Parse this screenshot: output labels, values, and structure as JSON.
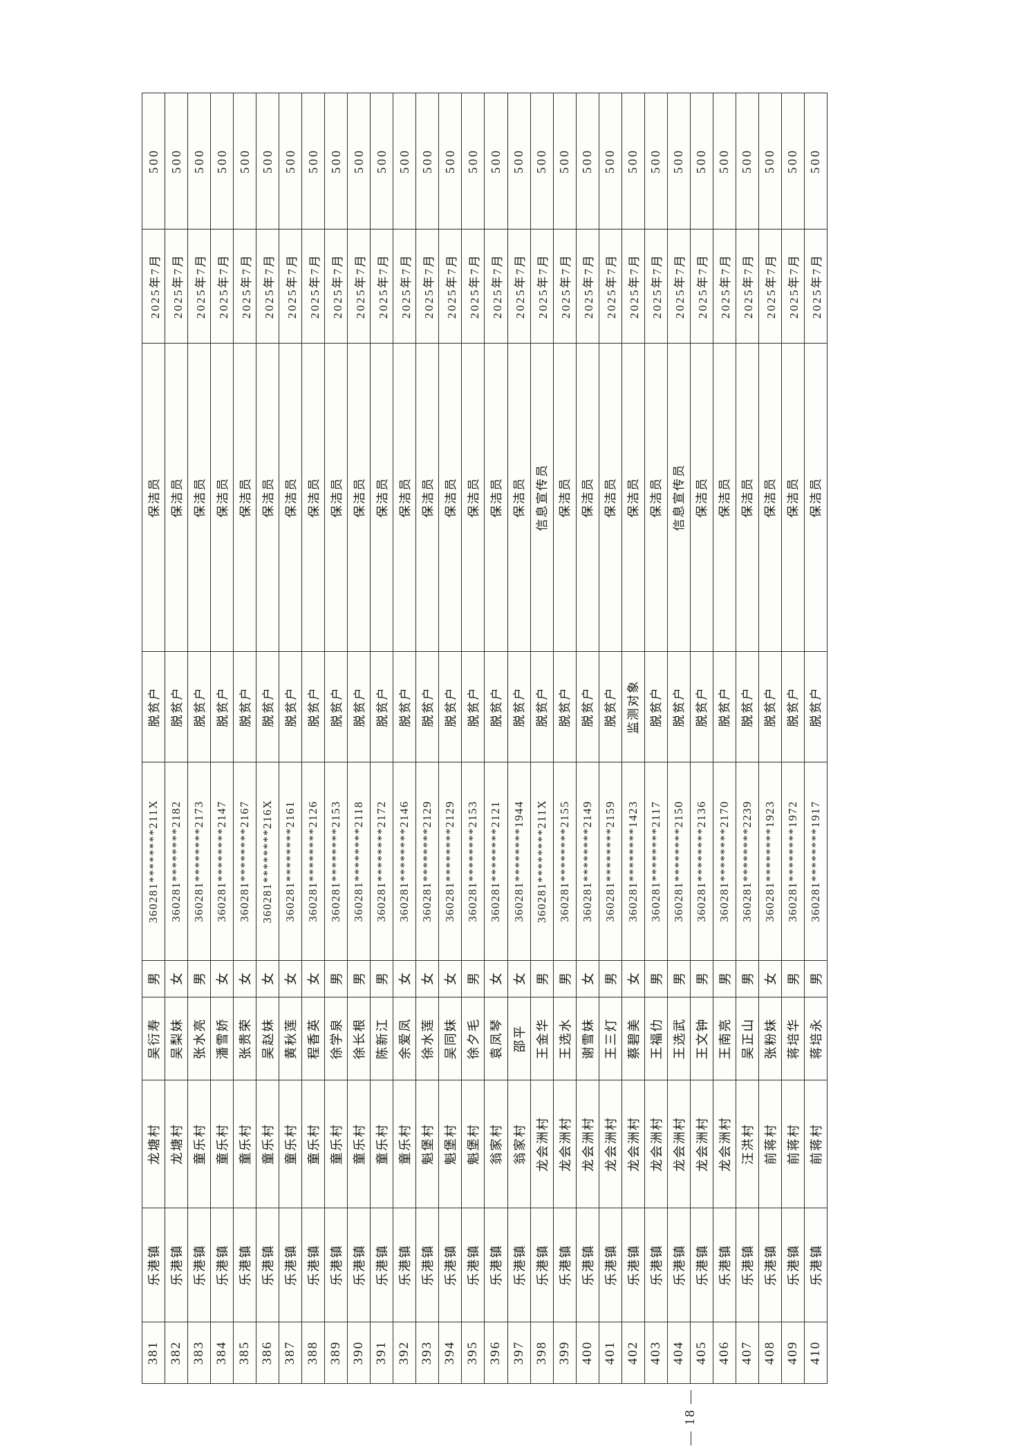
{
  "page": {
    "page_number": "— 18 —"
  },
  "table": {
    "column_order": [
      "seq",
      "town",
      "village",
      "name",
      "gender",
      "id_number",
      "category",
      "post",
      "month",
      "amount"
    ],
    "column_widths": {
      "seq": 89,
      "town": 165,
      "village": 185,
      "name": 120,
      "gender": 53,
      "id_number": 287,
      "category": 160,
      "post": 446,
      "month": 165,
      "amount": 197
    },
    "rows": [
      {
        "seq": "381",
        "town": "乐港镇",
        "village": "龙塘村",
        "name": "吴衍寿",
        "gender": "男",
        "id_number": "360281********211X",
        "category": "脱贫户",
        "post": "保洁员",
        "month": "2025年7月",
        "amount": "500"
      },
      {
        "seq": "382",
        "town": "乐港镇",
        "village": "龙塘村",
        "name": "吴梨妹",
        "gender": "女",
        "id_number": "360281********2182",
        "category": "脱贫户",
        "post": "保洁员",
        "month": "2025年7月",
        "amount": "500"
      },
      {
        "seq": "383",
        "town": "乐港镇",
        "village": "童乐村",
        "name": "张水亮",
        "gender": "男",
        "id_number": "360281********2173",
        "category": "脱贫户",
        "post": "保洁员",
        "month": "2025年7月",
        "amount": "500"
      },
      {
        "seq": "384",
        "town": "乐港镇",
        "village": "童乐村",
        "name": "潘雪娇",
        "gender": "女",
        "id_number": "360281********2147",
        "category": "脱贫户",
        "post": "保洁员",
        "month": "2025年7月",
        "amount": "500"
      },
      {
        "seq": "385",
        "town": "乐港镇",
        "village": "童乐村",
        "name": "张贵荣",
        "gender": "女",
        "id_number": "360281********2167",
        "category": "脱贫户",
        "post": "保洁员",
        "month": "2025年7月",
        "amount": "500"
      },
      {
        "seq": "386",
        "town": "乐港镇",
        "village": "童乐村",
        "name": "吴赵妹",
        "gender": "女",
        "id_number": "360281********216X",
        "category": "脱贫户",
        "post": "保洁员",
        "month": "2025年7月",
        "amount": "500"
      },
      {
        "seq": "387",
        "town": "乐港镇",
        "village": "童乐村",
        "name": "黄秋莲",
        "gender": "女",
        "id_number": "360281********2161",
        "category": "脱贫户",
        "post": "保洁员",
        "month": "2025年7月",
        "amount": "500"
      },
      {
        "seq": "388",
        "town": "乐港镇",
        "village": "童乐村",
        "name": "程香英",
        "gender": "女",
        "id_number": "360281********2126",
        "category": "脱贫户",
        "post": "保洁员",
        "month": "2025年7月",
        "amount": "500"
      },
      {
        "seq": "389",
        "town": "乐港镇",
        "village": "童乐村",
        "name": "徐学泉",
        "gender": "男",
        "id_number": "360281********2153",
        "category": "脱贫户",
        "post": "保洁员",
        "month": "2025年7月",
        "amount": "500"
      },
      {
        "seq": "390",
        "town": "乐港镇",
        "village": "童乐村",
        "name": "徐长根",
        "gender": "男",
        "id_number": "360281********2118",
        "category": "脱贫户",
        "post": "保洁员",
        "month": "2025年7月",
        "amount": "500"
      },
      {
        "seq": "391",
        "town": "乐港镇",
        "village": "童乐村",
        "name": "陈新江",
        "gender": "男",
        "id_number": "360281********2172",
        "category": "脱贫户",
        "post": "保洁员",
        "month": "2025年7月",
        "amount": "500"
      },
      {
        "seq": "392",
        "town": "乐港镇",
        "village": "童乐村",
        "name": "余爱凤",
        "gender": "女",
        "id_number": "360281********2146",
        "category": "脱贫户",
        "post": "保洁员",
        "month": "2025年7月",
        "amount": "500"
      },
      {
        "seq": "393",
        "town": "乐港镇",
        "village": "魁堡村",
        "name": "徐水莲",
        "gender": "女",
        "id_number": "360281********2129",
        "category": "脱贫户",
        "post": "保洁员",
        "month": "2025年7月",
        "amount": "500"
      },
      {
        "seq": "394",
        "town": "乐港镇",
        "village": "魁堡村",
        "name": "吴同妹",
        "gender": "女",
        "id_number": "360281********2129",
        "category": "脱贫户",
        "post": "保洁员",
        "month": "2025年7月",
        "amount": "500"
      },
      {
        "seq": "395",
        "town": "乐港镇",
        "village": "魁堡村",
        "name": "徐夕毛",
        "gender": "男",
        "id_number": "360281********2153",
        "category": "脱贫户",
        "post": "保洁员",
        "month": "2025年7月",
        "amount": "500"
      },
      {
        "seq": "396",
        "town": "乐港镇",
        "village": "翁家村",
        "name": "袁凤琴",
        "gender": "女",
        "id_number": "360281********2121",
        "category": "脱贫户",
        "post": "保洁员",
        "month": "2025年7月",
        "amount": "500"
      },
      {
        "seq": "397",
        "town": "乐港镇",
        "village": "翁家村",
        "name": "邵平",
        "gender": "女",
        "id_number": "360281********1944",
        "category": "脱贫户",
        "post": "保洁员",
        "month": "2025年7月",
        "amount": "500"
      },
      {
        "seq": "398",
        "town": "乐港镇",
        "village": "龙会洲村",
        "name": "王金华",
        "gender": "男",
        "id_number": "360281********211X",
        "category": "脱贫户",
        "post": "信息宣传员",
        "month": "2025年7月",
        "amount": "500"
      },
      {
        "seq": "399",
        "town": "乐港镇",
        "village": "龙会洲村",
        "name": "王选水",
        "gender": "男",
        "id_number": "360281********2155",
        "category": "脱贫户",
        "post": "保洁员",
        "month": "2025年7月",
        "amount": "500"
      },
      {
        "seq": "400",
        "town": "乐港镇",
        "village": "龙会洲村",
        "name": "谢雪妹",
        "gender": "女",
        "id_number": "360281********2149",
        "category": "脱贫户",
        "post": "保洁员",
        "month": "2025年7月",
        "amount": "500"
      },
      {
        "seq": "401",
        "town": "乐港镇",
        "village": "龙会洲村",
        "name": "王三灯",
        "gender": "男",
        "id_number": "360281********2159",
        "category": "脱贫户",
        "post": "保洁员",
        "month": "2025年7月",
        "amount": "500"
      },
      {
        "seq": "402",
        "town": "乐港镇",
        "village": "龙会洲村",
        "name": "蔡碧美",
        "gender": "女",
        "id_number": "360281********1423",
        "category": "监测对象",
        "post": "保洁员",
        "month": "2025年7月",
        "amount": "500"
      },
      {
        "seq": "403",
        "town": "乐港镇",
        "village": "龙会洲村",
        "name": "王福仂",
        "gender": "男",
        "id_number": "360281********2117",
        "category": "脱贫户",
        "post": "保洁员",
        "month": "2025年7月",
        "amount": "500"
      },
      {
        "seq": "404",
        "town": "乐港镇",
        "village": "龙会洲村",
        "name": "王选武",
        "gender": "男",
        "id_number": "360281********2150",
        "category": "脱贫户",
        "post": "信息宣传员",
        "month": "2025年7月",
        "amount": "500"
      },
      {
        "seq": "405",
        "town": "乐港镇",
        "village": "龙会洲村",
        "name": "王文钟",
        "gender": "男",
        "id_number": "360281********2136",
        "category": "脱贫户",
        "post": "保洁员",
        "month": "2025年7月",
        "amount": "500"
      },
      {
        "seq": "406",
        "town": "乐港镇",
        "village": "龙会洲村",
        "name": "王南亮",
        "gender": "男",
        "id_number": "360281********2170",
        "category": "脱贫户",
        "post": "保洁员",
        "month": "2025年7月",
        "amount": "500"
      },
      {
        "seq": "407",
        "town": "乐港镇",
        "village": "汪洪村",
        "name": "吴正山",
        "gender": "男",
        "id_number": "360281********2239",
        "category": "脱贫户",
        "post": "保洁员",
        "month": "2025年7月",
        "amount": "500"
      },
      {
        "seq": "408",
        "town": "乐港镇",
        "village": "前蒋村",
        "name": "张粉妹",
        "gender": "女",
        "id_number": "360281********1923",
        "category": "脱贫户",
        "post": "保洁员",
        "month": "2025年7月",
        "amount": "500"
      },
      {
        "seq": "409",
        "town": "乐港镇",
        "village": "前蒋村",
        "name": "蒋培华",
        "gender": "男",
        "id_number": "360281********1972",
        "category": "脱贫户",
        "post": "保洁员",
        "month": "2025年7月",
        "amount": "500"
      },
      {
        "seq": "410",
        "town": "乐港镇",
        "village": "前蒋村",
        "name": "蒋培永",
        "gender": "男",
        "id_number": "360281********1917",
        "category": "脱贫户",
        "post": "保洁员",
        "month": "2025年7月",
        "amount": "500"
      }
    ]
  }
}
